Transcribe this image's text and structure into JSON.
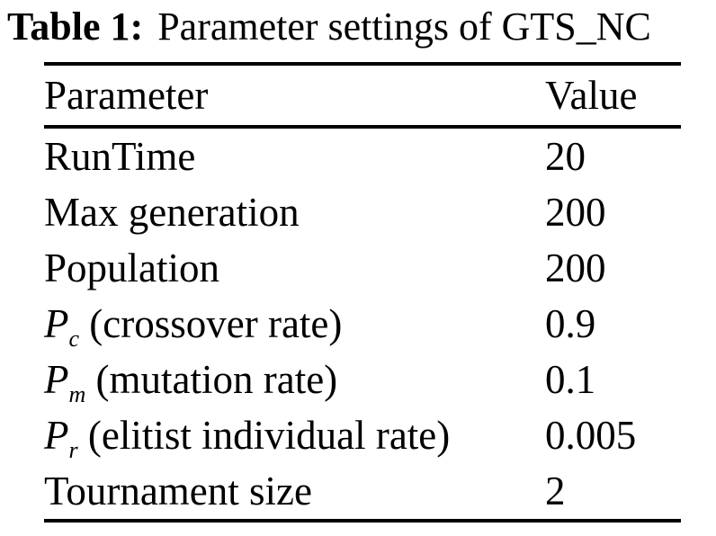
{
  "caption": {
    "label": "Table 1:",
    "text": "Parameter settings of GTS_NC"
  },
  "table": {
    "headers": [
      "Parameter",
      "Value"
    ],
    "rows": [
      {
        "param_base": "RunTime",
        "param_sub": "",
        "param_rest": "",
        "value": "20"
      },
      {
        "param_base": "Max generation",
        "param_sub": "",
        "param_rest": "",
        "value": "200"
      },
      {
        "param_base": "Population",
        "param_sub": "",
        "param_rest": "",
        "value": "200"
      },
      {
        "param_base": "P",
        "param_sub": "c",
        "param_rest": " (crossover rate)",
        "value": "0.9"
      },
      {
        "param_base": "P",
        "param_sub": "m",
        "param_rest": " (mutation rate)",
        "value": "0.1"
      },
      {
        "param_base": "P",
        "param_sub": "r",
        "param_rest": " (elitist individual rate)",
        "value": "0.005"
      },
      {
        "param_base": "Tournament size",
        "param_sub": "",
        "param_rest": "",
        "value": "2"
      }
    ],
    "text_color": "#000000",
    "background_color": "#ffffff",
    "rule_color": "#000000"
  }
}
